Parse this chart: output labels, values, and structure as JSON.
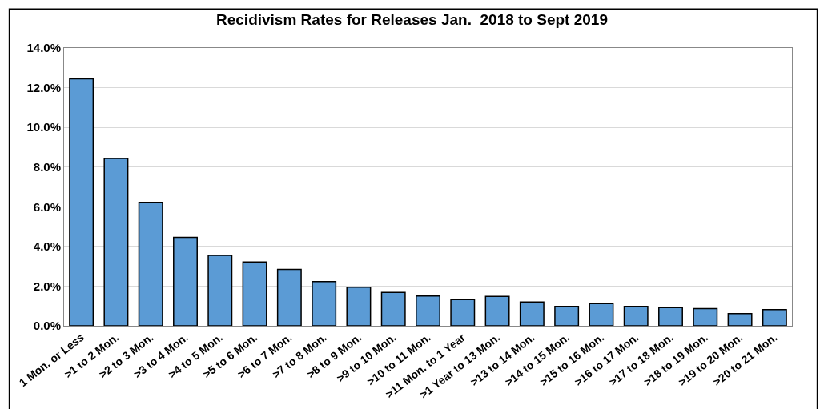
{
  "chart_data": {
    "type": "bar",
    "title": "Recidivism Rates for Releases Jan.  2018 to Sept 2019",
    "categories": [
      "1 Mon. or Less",
      ">1 to 2 Mon.",
      ">2 to 3 Mon.",
      ">3 to 4 Mon.",
      ">4 to 5 Mon.",
      ">5 to 6 Mon.",
      ">6 to 7 Mon.",
      ">7 to 8 Mon.",
      ">8 to 9 Mon.",
      ">9 to 10 Mon.",
      ">10 to 11 Mon.",
      ">11 Mon. to 1 Year",
      ">1 Year to 13 Mon.",
      ">13 to 14 Mon.",
      ">14 to 15 Mon.",
      ">15 to 16 Mon.",
      ">16 to 17 Mon.",
      ">17 to 18 Mon.",
      ">18 to 19 Mon.",
      ">19 to 20 Mon.",
      ">20 to 21 Mon."
    ],
    "values": [
      12.45,
      8.43,
      6.2,
      4.46,
      3.55,
      3.22,
      2.84,
      2.23,
      1.95,
      1.68,
      1.5,
      1.32,
      1.48,
      1.2,
      0.98,
      1.12,
      0.98,
      0.92,
      0.87,
      0.62,
      0.82
    ],
    "color": "#5b9bd5",
    "ylim": [
      0,
      14
    ],
    "yticks": [
      {
        "value": 0,
        "label": "0.0%"
      },
      {
        "value": 2,
        "label": "2.0%"
      },
      {
        "value": 4,
        "label": "4.0%"
      },
      {
        "value": 6,
        "label": "6.0%"
      },
      {
        "value": 8,
        "label": "8.0%"
      },
      {
        "value": 10,
        "label": "10.0%"
      },
      {
        "value": 12,
        "label": "12.0%"
      },
      {
        "value": 14,
        "label": "14.0%"
      }
    ],
    "grid": "y"
  }
}
